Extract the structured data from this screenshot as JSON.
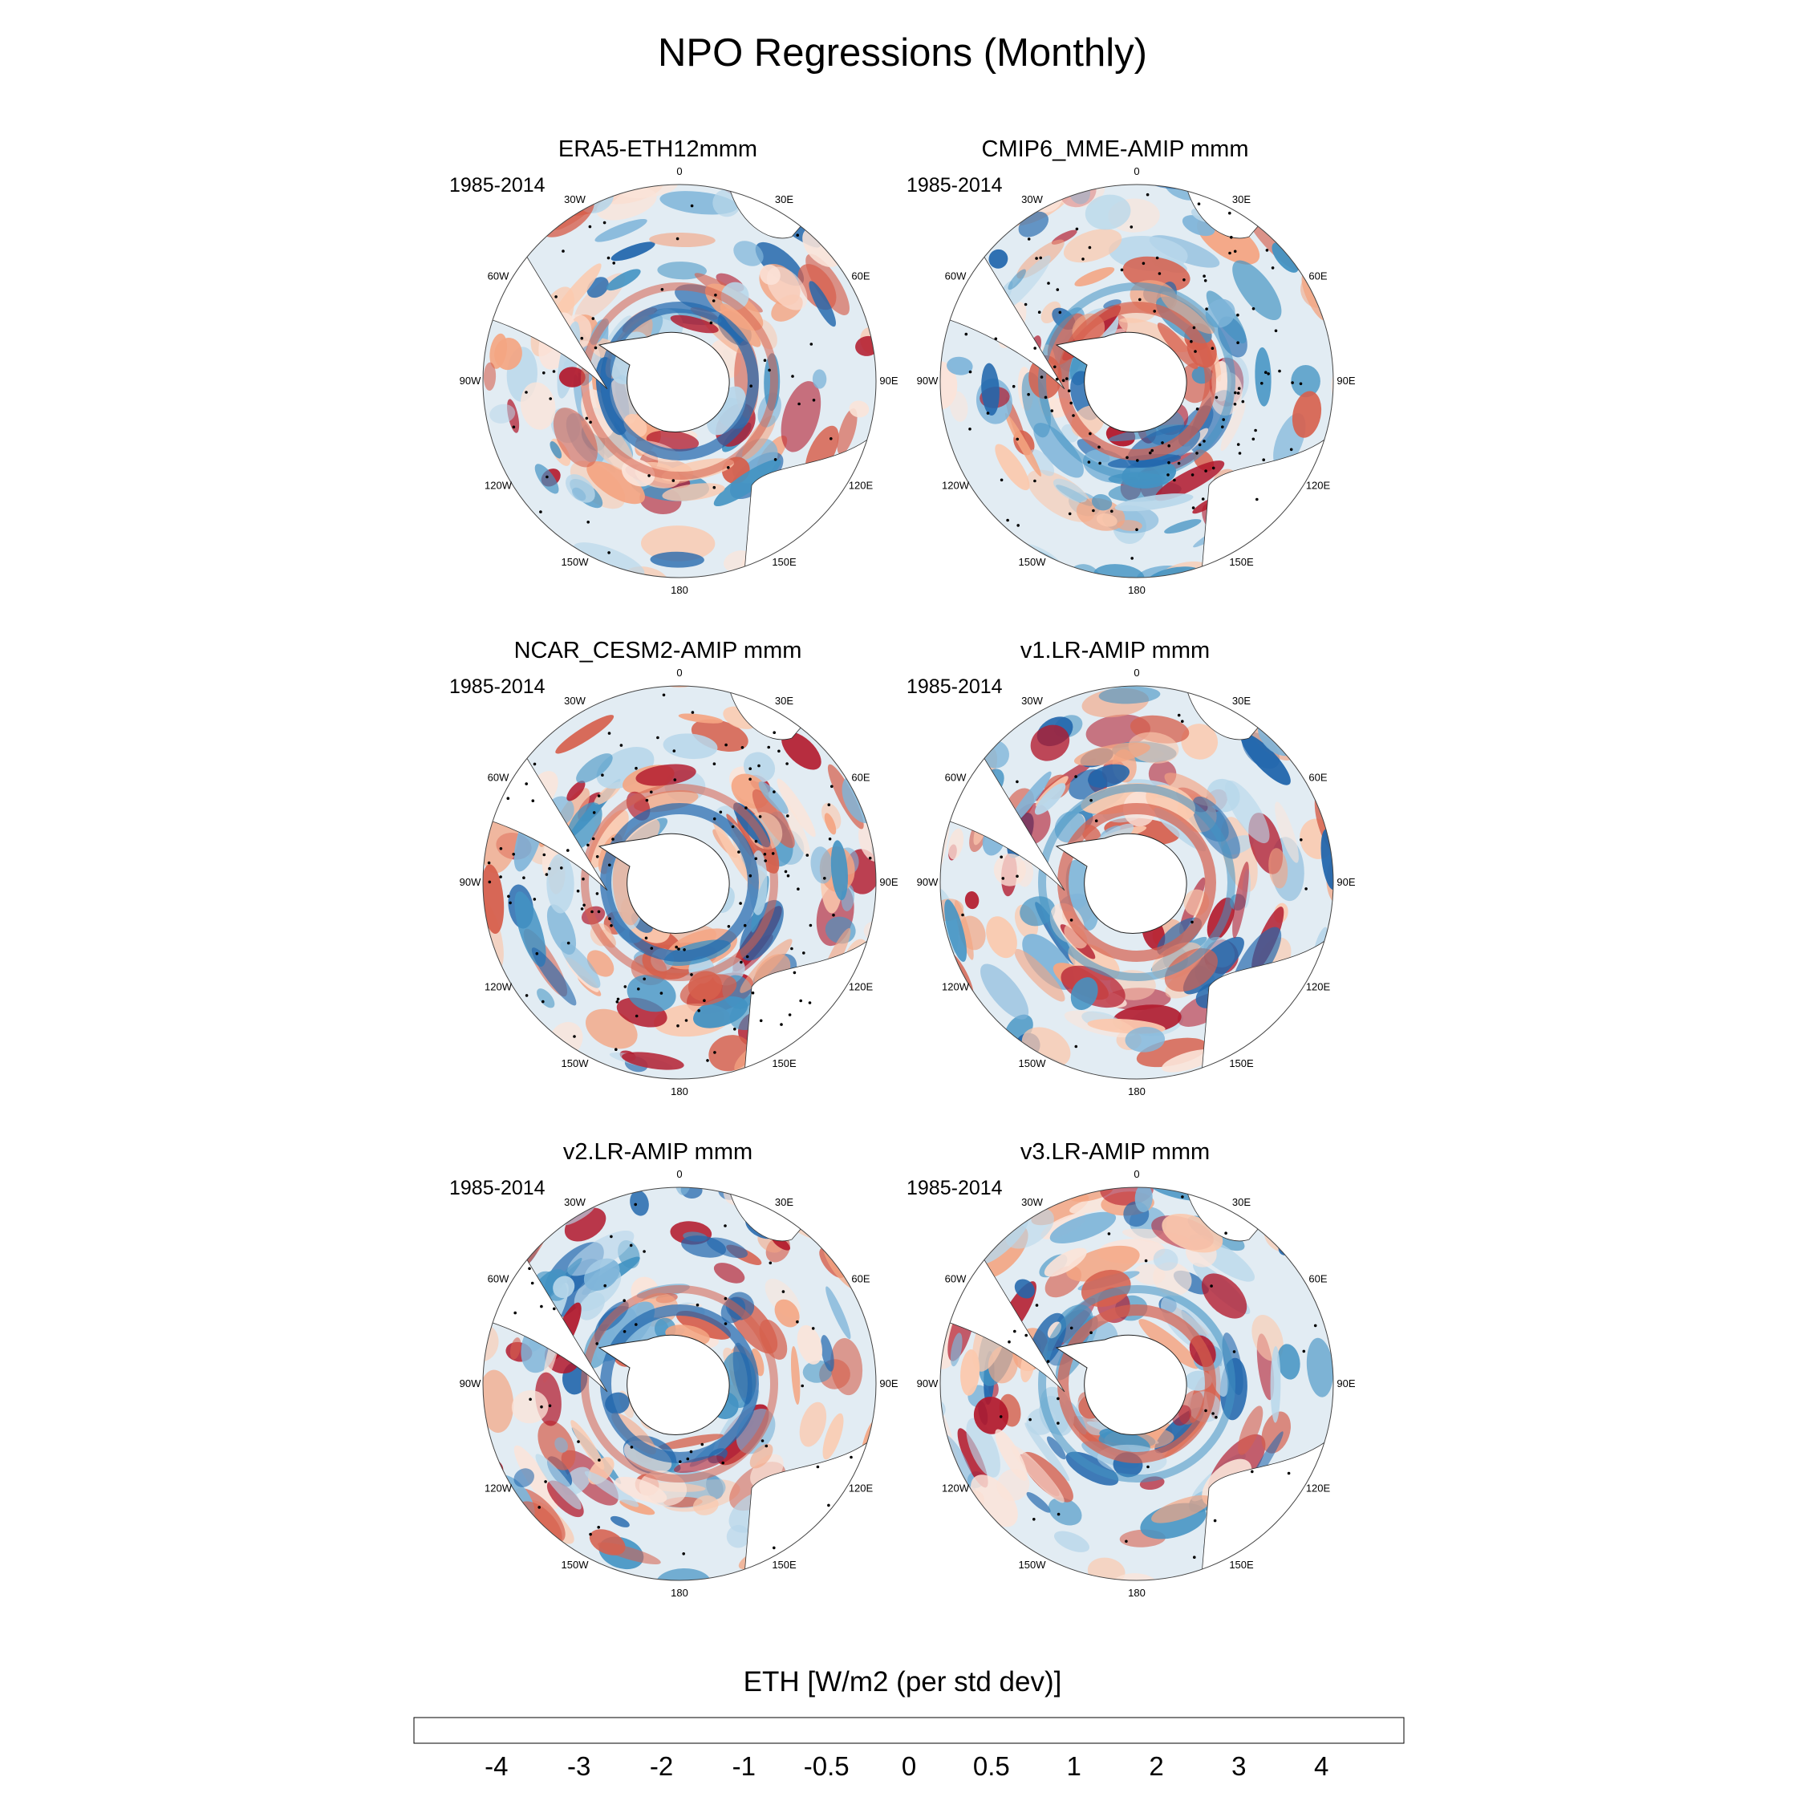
{
  "figure": {
    "title": "NPO Regressions (Monthly)"
  },
  "chart_data": {
    "type": "polar-stereographic-map-panels",
    "projection": "South polar stereographic",
    "longitude_labels": [
      "0",
      "30E",
      "60E",
      "90E",
      "120E",
      "150E",
      "180",
      "150W",
      "120W",
      "90W",
      "60W",
      "30W"
    ],
    "panels": [
      {
        "title": "ERA5-ETH12mmm",
        "period": "1985-2014"
      },
      {
        "title": "CMIP6_MME-AMIP  mmm",
        "period": "1985-2014"
      },
      {
        "title": "NCAR_CESM2-AMIP  mmm",
        "period": "1985-2014"
      },
      {
        "title": "v1.LR-AMIP  mmm",
        "period": "1985-2014"
      },
      {
        "title": "v2.LR-AMIP  mmm",
        "period": "1985-2014"
      },
      {
        "title": "v3.LR-AMIP  mmm",
        "period": "1985-2014"
      }
    ],
    "colorbar": {
      "label": "ETH [W/m2 (per std dev)]",
      "tick_labels": [
        "-4",
        "-3",
        "-2",
        "-1",
        "-0.5",
        "0",
        "0.5",
        "1",
        "2",
        "3",
        "4"
      ],
      "levels": [
        -4,
        -3,
        -2,
        -1,
        -0.5,
        0,
        0.5,
        1,
        2,
        3,
        4
      ],
      "colors": [
        "#67001f",
        "#b2182b",
        "#d6604d",
        "#f4a582",
        "#fbc9ae",
        "#fbe4d9",
        "#e2ecf3",
        "#b8d7ea",
        "#7fb5d9",
        "#4393c3",
        "#2166ac",
        "#053061"
      ]
    },
    "stippling": "significant regions marked with black dots"
  }
}
